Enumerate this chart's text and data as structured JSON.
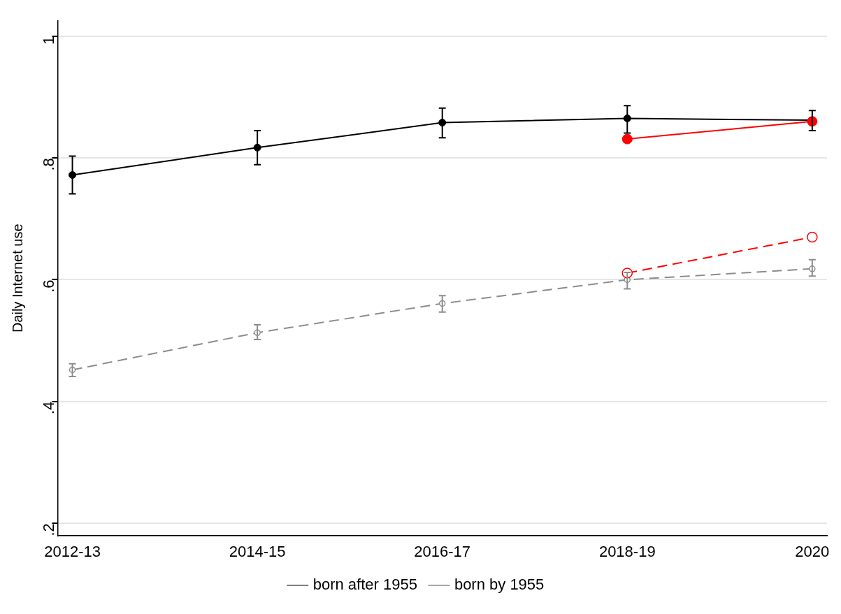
{
  "chart_data": {
    "type": "line",
    "ylabel": "Daily Internet use",
    "categories": [
      "2012-13",
      "2014-15",
      "2016-17",
      "2018-19",
      "2020"
    ],
    "series": [
      {
        "name": "born after 1955",
        "color": "#000000",
        "values": [
          0.772,
          0.817,
          0.858,
          0.865,
          0.862
        ],
        "errors": [
          [
            0.741,
            0.803
          ],
          [
            0.789,
            0.845
          ],
          [
            0.833,
            0.882
          ],
          [
            0.841,
            0.886
          ],
          [
            0.845,
            0.878
          ]
        ],
        "line_style": "solid"
      },
      {
        "name": "born by 1955",
        "color": "#8c8c8c",
        "values": [
          0.452,
          0.513,
          0.561,
          0.6,
          0.618
        ],
        "errors": [
          [
            0.441,
            0.462
          ],
          [
            0.502,
            0.526
          ],
          [
            0.547,
            0.574
          ],
          [
            0.585,
            0.612
          ],
          [
            0.606,
            0.633
          ]
        ],
        "line_style": "dashed"
      },
      {
        "color": "#ff0000",
        "values": [
          null,
          null,
          null,
          0.831,
          0.86
        ],
        "line_style": "solid"
      },
      {
        "color": "#ff0000",
        "values": [
          null,
          null,
          null,
          0.611,
          0.67
        ],
        "line_style": "dashed"
      }
    ],
    "ylim": [
      0.18,
      1.025
    ],
    "yticks": [
      {
        "value": 0.2,
        "label": ".2"
      },
      {
        "value": 0.4,
        "label": ".4"
      },
      {
        "value": 0.6,
        "label": ".6"
      },
      {
        "value": 0.8,
        "label": ".8"
      },
      {
        "value": 1,
        "label": "1"
      }
    ],
    "grid": "y",
    "legend": "bottom",
    "marker": "circle"
  }
}
